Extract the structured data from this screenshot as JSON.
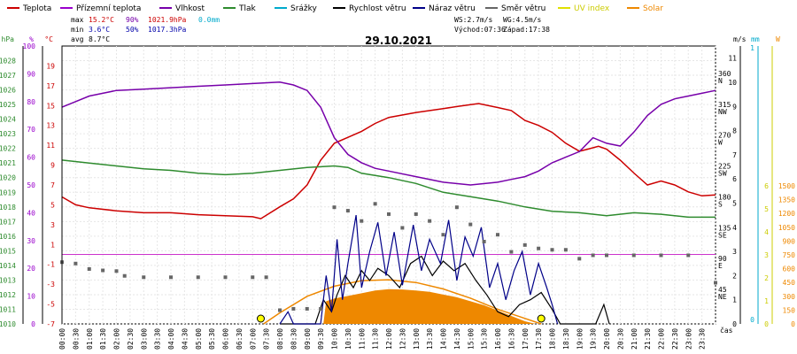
{
  "chart_data": {
    "type": "line",
    "title": "29.10.2021",
    "x_axis_label": "čas",
    "x_ticks": [
      "00:00",
      "00:30",
      "01:00",
      "01:30",
      "02:00",
      "02:30",
      "03:00",
      "03:30",
      "04:00",
      "04:30",
      "05:00",
      "05:30",
      "06:00",
      "06:30",
      "07:00",
      "07:30",
      "08:00",
      "08:30",
      "09:00",
      "09:30",
      "10:00",
      "10:30",
      "11:00",
      "11:30",
      "12:00",
      "12:30",
      "13:00",
      "13:30",
      "14:00",
      "14:30",
      "15:00",
      "15:30",
      "16:00",
      "16:30",
      "17:00",
      "17:30",
      "18:00",
      "18:30",
      "19:00",
      "19:30",
      "20:00",
      "20:30",
      "21:00",
      "21:30",
      "22:00",
      "22:30",
      "23:00",
      "23:30"
    ],
    "axes": {
      "hpa": {
        "label": "hPa",
        "color": "#2e8b2e",
        "range": [
          1010,
          1029
        ],
        "ticks": [
          "1010",
          "1011",
          "1012",
          "1013",
          "1014",
          "1015",
          "1016",
          "1017",
          "1018",
          "1019",
          "1020",
          "1021",
          "1022",
          "1023",
          "1024",
          "1025",
          "1026",
          "1027",
          "1028"
        ]
      },
      "percent": {
        "label": "%",
        "color": "#9900cc",
        "range": [
          0,
          100
        ],
        "ticks": [
          "0",
          "10",
          "20",
          "30",
          "40",
          "50",
          "60",
          "70",
          "80",
          "90",
          "100"
        ]
      },
      "celsius": {
        "label": "°C",
        "color": "#cc0000",
        "range": [
          -7,
          21
        ],
        "ticks": [
          "-7",
          "-5",
          "-3",
          "-1",
          "1",
          "3",
          "5",
          "7",
          "9",
          "11",
          "13",
          "15",
          "17",
          "19"
        ]
      },
      "wind_ms": {
        "label": "m/s",
        "color": "#000000",
        "range": [
          0,
          11.5
        ],
        "ticks": [
          "0",
          "1",
          "2",
          "3",
          "4",
          "5",
          "6",
          "7",
          "8",
          "9",
          "10",
          "11"
        ]
      },
      "direction": {
        "ticks": [
          "45\nNE",
          "90\nE",
          "135\nSE",
          "180\nS",
          "225\nSW",
          "270\nW",
          "315\nNW",
          "360\nN"
        ],
        "values": [
          45,
          90,
          135,
          180,
          225,
          270,
          315,
          360
        ]
      },
      "rain_mm": {
        "label": "mm",
        "color": "#00aacc",
        "ticks": [
          "0",
          "1"
        ]
      },
      "uv": {
        "ticks": [
          "0",
          "1",
          "2",
          "3",
          "4",
          "5",
          "6"
        ]
      },
      "solar": {
        "label": "W",
        "color": "#ee8800",
        "ticks": [
          "0",
          "150",
          "300",
          "450",
          "600",
          "750",
          "900",
          "1050",
          "1200",
          "1350",
          "1500"
        ]
      }
    },
    "legend": [
      {
        "name": "Teplota",
        "color": "#cc0000"
      },
      {
        "name": "Přízemní teplota",
        "color": "#9900cc"
      },
      {
        "name": "Vlhkost",
        "color": "#7700aa"
      },
      {
        "name": "Tlak",
        "color": "#2e8b2e"
      },
      {
        "name": "Srážky",
        "color": "#00aacc"
      },
      {
        "name": "Rychlost větru",
        "color": "#000000"
      },
      {
        "name": "Náraz větru",
        "color": "#000088"
      },
      {
        "name": "Směr větru",
        "color": "#666666"
      },
      {
        "name": "UV index",
        "color": "#e0e000"
      },
      {
        "name": "Solar",
        "color": "#ee8800"
      }
    ],
    "stats": {
      "max": {
        "label": "max",
        "temp": "15.2°C",
        "hum": "90%",
        "press": "1021.9hPa",
        "rain": "0.0mm"
      },
      "min": {
        "label": "min",
        "temp": "3.6°C",
        "hum": "50%",
        "press": "1017.3hPa"
      },
      "avg": {
        "label": "avg",
        "temp": "8.7°C"
      }
    },
    "wind_info": {
      "ws": "WS:2.7m/s",
      "wg": "WG:4.5m/s",
      "sunrise": "Východ:07:36",
      "sunset": "Západ:17:38"
    },
    "series": [
      {
        "name": "Teplota",
        "axis": "celsius",
        "color": "#cc0000",
        "points": [
          [
            0,
            5.8
          ],
          [
            0.5,
            5.0
          ],
          [
            1,
            4.7
          ],
          [
            2,
            4.4
          ],
          [
            3,
            4.2
          ],
          [
            4,
            4.2
          ],
          [
            5,
            4.0
          ],
          [
            6,
            3.9
          ],
          [
            7,
            3.8
          ],
          [
            7.3,
            3.6
          ],
          [
            8,
            4.8
          ],
          [
            8.5,
            5.6
          ],
          [
            9,
            7.0
          ],
          [
            9.5,
            9.5
          ],
          [
            10,
            11.2
          ],
          [
            10.5,
            11.8
          ],
          [
            11,
            12.4
          ],
          [
            11.5,
            13.2
          ],
          [
            12,
            13.8
          ],
          [
            13,
            14.3
          ],
          [
            14,
            14.7
          ],
          [
            14.5,
            14.9
          ],
          [
            15,
            15.1
          ],
          [
            15.3,
            15.2
          ],
          [
            16,
            14.8
          ],
          [
            16.5,
            14.5
          ],
          [
            17,
            13.5
          ],
          [
            17.5,
            13.0
          ],
          [
            18,
            12.3
          ],
          [
            18.5,
            11.2
          ],
          [
            19,
            10.4
          ],
          [
            19.3,
            10.6
          ],
          [
            19.7,
            10.9
          ],
          [
            20,
            10.6
          ],
          [
            20.5,
            9.5
          ],
          [
            21,
            8.2
          ],
          [
            21.5,
            7.0
          ],
          [
            22,
            7.4
          ],
          [
            22.5,
            7.0
          ],
          [
            23,
            6.3
          ],
          [
            23.5,
            5.9
          ],
          [
            24,
            6.0
          ]
        ]
      },
      {
        "name": "Vlhkost",
        "axis": "percent",
        "color": "#7700aa",
        "points": [
          [
            0,
            78
          ],
          [
            0.5,
            80
          ],
          [
            1,
            82
          ],
          [
            1.5,
            83
          ],
          [
            2,
            84
          ],
          [
            3,
            84.5
          ],
          [
            4,
            85
          ],
          [
            5,
            85.5
          ],
          [
            6,
            86
          ],
          [
            7,
            86.5
          ],
          [
            8,
            87
          ],
          [
            8.5,
            86
          ],
          [
            9,
            84
          ],
          [
            9.5,
            78
          ],
          [
            10,
            67
          ],
          [
            10.5,
            61
          ],
          [
            11,
            58
          ],
          [
            11.5,
            56
          ],
          [
            12,
            55
          ],
          [
            13,
            53
          ],
          [
            14,
            51
          ],
          [
            15,
            50
          ],
          [
            16,
            51
          ],
          [
            16.5,
            52
          ],
          [
            17,
            53
          ],
          [
            17.5,
            55
          ],
          [
            18,
            58
          ],
          [
            18.5,
            60
          ],
          [
            19,
            62
          ],
          [
            19.5,
            67
          ],
          [
            20,
            65
          ],
          [
            20.5,
            64
          ],
          [
            21,
            69
          ],
          [
            21.5,
            75
          ],
          [
            22,
            79
          ],
          [
            22.5,
            81
          ],
          [
            23,
            82
          ],
          [
            23.5,
            83
          ],
          [
            24,
            84
          ]
        ]
      },
      {
        "name": "Tlak",
        "axis": "hpa",
        "color": "#2e8b2e",
        "points": [
          [
            0,
            1021.2
          ],
          [
            1,
            1021.0
          ],
          [
            2,
            1020.8
          ],
          [
            3,
            1020.6
          ],
          [
            4,
            1020.5
          ],
          [
            5,
            1020.3
          ],
          [
            6,
            1020.2
          ],
          [
            7,
            1020.3
          ],
          [
            8,
            1020.5
          ],
          [
            9,
            1020.7
          ],
          [
            10,
            1020.8
          ],
          [
            10.5,
            1020.7
          ],
          [
            11,
            1020.3
          ],
          [
            12,
            1020.0
          ],
          [
            13,
            1019.6
          ],
          [
            14,
            1019.0
          ],
          [
            15,
            1018.7
          ],
          [
            16,
            1018.4
          ],
          [
            17,
            1018.0
          ],
          [
            18,
            1017.7
          ],
          [
            19,
            1017.6
          ],
          [
            20,
            1017.4
          ],
          [
            21,
            1017.6
          ],
          [
            22,
            1017.5
          ],
          [
            23,
            1017.3
          ],
          [
            24,
            1017.3
          ]
        ]
      },
      {
        "name": "Solar",
        "axis": "solar_theoretical",
        "color": "#ee8800",
        "points": [
          [
            7.4,
            0
          ],
          [
            8,
            120
          ],
          [
            9,
            300
          ],
          [
            10,
            410
          ],
          [
            11,
            470
          ],
          [
            12,
            480
          ],
          [
            13,
            450
          ],
          [
            14,
            380
          ],
          [
            15,
            280
          ],
          [
            16,
            160
          ],
          [
            17,
            60
          ],
          [
            17.6,
            0
          ]
        ]
      },
      {
        "name": "Rychlost větru",
        "axis": "wind_ms",
        "color": "#000000",
        "points": [
          [
            8,
            0
          ],
          [
            9.3,
            0
          ],
          [
            9.6,
            1.0
          ],
          [
            9.9,
            0.5
          ],
          [
            10.1,
            1.2
          ],
          [
            10.4,
            2.0
          ],
          [
            10.7,
            1.5
          ],
          [
            11,
            2.2
          ],
          [
            11.3,
            1.8
          ],
          [
            11.6,
            2.3
          ],
          [
            12,
            2.0
          ],
          [
            12.4,
            1.5
          ],
          [
            12.8,
            2.5
          ],
          [
            13.2,
            2.8
          ],
          [
            13.6,
            2.0
          ],
          [
            14,
            2.6
          ],
          [
            14.4,
            2.2
          ],
          [
            14.8,
            2.5
          ],
          [
            15.2,
            1.8
          ],
          [
            15.6,
            1.2
          ],
          [
            16,
            0.5
          ],
          [
            16.4,
            0.3
          ],
          [
            16.8,
            0.8
          ],
          [
            17.2,
            1.0
          ],
          [
            17.6,
            1.3
          ],
          [
            18,
            0.6
          ],
          [
            18.3,
            0
          ],
          [
            19.6,
            0
          ],
          [
            19.9,
            0.8
          ],
          [
            20.1,
            0
          ]
        ]
      },
      {
        "name": "Náraz větru",
        "axis": "wind_ms",
        "color": "#000088",
        "points": [
          [
            8,
            0
          ],
          [
            8.3,
            0.5
          ],
          [
            8.5,
            0
          ],
          [
            9.5,
            0
          ],
          [
            9.7,
            2.0
          ],
          [
            9.9,
            0.5
          ],
          [
            10.1,
            3.5
          ],
          [
            10.3,
            1.0
          ],
          [
            10.5,
            2.5
          ],
          [
            10.8,
            4.5
          ],
          [
            11,
            1.5
          ],
          [
            11.3,
            3.0
          ],
          [
            11.6,
            4.2
          ],
          [
            11.9,
            2.0
          ],
          [
            12.2,
            3.8
          ],
          [
            12.5,
            1.6
          ],
          [
            12.9,
            4.1
          ],
          [
            13.2,
            2.2
          ],
          [
            13.5,
            3.5
          ],
          [
            13.9,
            2.5
          ],
          [
            14.2,
            4.3
          ],
          [
            14.5,
            1.8
          ],
          [
            14.8,
            3.6
          ],
          [
            15.1,
            2.8
          ],
          [
            15.4,
            4.0
          ],
          [
            15.7,
            1.5
          ],
          [
            16,
            2.5
          ],
          [
            16.3,
            1.0
          ],
          [
            16.6,
            2.2
          ],
          [
            16.9,
            3.0
          ],
          [
            17.2,
            1.2
          ],
          [
            17.5,
            2.5
          ],
          [
            17.8,
            1.5
          ],
          [
            18,
            0.8
          ],
          [
            18.2,
            0
          ]
        ]
      },
      {
        "name": "Směr větru",
        "axis": "direction",
        "color": "#666666",
        "points": [
          [
            0,
            90
          ],
          [
            0.5,
            88
          ],
          [
            1,
            80
          ],
          [
            1.5,
            78
          ],
          [
            2,
            77
          ],
          [
            2.3,
            70
          ],
          [
            3,
            68
          ],
          [
            4,
            68
          ],
          [
            5,
            68
          ],
          [
            6,
            68
          ],
          [
            7,
            68
          ],
          [
            7.5,
            68
          ],
          [
            8,
            20
          ],
          [
            8.5,
            22
          ],
          [
            9,
            22
          ],
          [
            9.5,
            22
          ],
          [
            10,
            170
          ],
          [
            10.5,
            165
          ],
          [
            11,
            150
          ],
          [
            11.5,
            175
          ],
          [
            12,
            160
          ],
          [
            12.5,
            140
          ],
          [
            13,
            160
          ],
          [
            13.5,
            150
          ],
          [
            14,
            130
          ],
          [
            14.5,
            170
          ],
          [
            15,
            145
          ],
          [
            15.5,
            120
          ],
          [
            16,
            130
          ],
          [
            16.5,
            105
          ],
          [
            17,
            115
          ],
          [
            17.5,
            110
          ],
          [
            18,
            108
          ],
          [
            18.5,
            108
          ],
          [
            19,
            95
          ],
          [
            19.5,
            100
          ],
          [
            20,
            100
          ],
          [
            21,
            100
          ],
          [
            22,
            100
          ],
          [
            23,
            100
          ],
          [
            24,
            60
          ]
        ]
      }
    ],
    "uv_markers": [
      7.3,
      17.6
    ]
  }
}
